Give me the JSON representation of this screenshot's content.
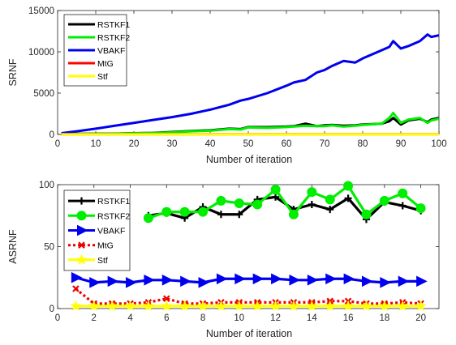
{
  "chart_data": [
    {
      "type": "line",
      "title": "",
      "xlabel": "Number of iteration",
      "ylabel": "SRNF",
      "xlim": [
        0,
        100
      ],
      "ylim": [
        0,
        15000
      ],
      "xticks": [
        0,
        10,
        20,
        30,
        40,
        50,
        60,
        70,
        80,
        90,
        100
      ],
      "yticks": [
        0,
        5000,
        10000,
        15000
      ],
      "xtick_labels": [
        "0",
        "10",
        "20",
        "30",
        "40",
        "50",
        "60",
        "70",
        "80",
        "90",
        "100"
      ],
      "ytick_labels": [
        "0",
        "5000",
        "10000",
        "15000"
      ],
      "legend_position": "top-left",
      "grid": false,
      "x": [
        1,
        5,
        10,
        15,
        20,
        25,
        30,
        35,
        40,
        45,
        48,
        50,
        55,
        60,
        62,
        65,
        68,
        70,
        72,
        75,
        78,
        80,
        85,
        87,
        88,
        90,
        92,
        95,
        97,
        98,
        100
      ],
      "series": [
        {
          "name": "RSTKF1",
          "color": "#000000",
          "marker": "none",
          "values": [
            60,
            70,
            80,
            100,
            150,
            180,
            300,
            420,
            500,
            700,
            650,
            900,
            880,
            950,
            1000,
            1300,
            1000,
            1100,
            1150,
            1050,
            1100,
            1200,
            1300,
            1600,
            2000,
            1200,
            1700,
            1900,
            1500,
            1800,
            2000
          ]
        },
        {
          "name": "RSTKF2",
          "color": "#00ee00",
          "marker": "none",
          "values": [
            50,
            60,
            70,
            90,
            130,
            160,
            250,
            380,
            450,
            650,
            600,
            850,
            800,
            900,
            950,
            1050,
            1000,
            1000,
            1100,
            950,
            1050,
            1150,
            1300,
            2000,
            2600,
            1400,
            1800,
            2000,
            1400,
            1700,
            1900
          ]
        },
        {
          "name": "VBAKF",
          "color": "#0000ee",
          "marker": "none",
          "values": [
            150,
            380,
            700,
            1050,
            1400,
            1750,
            2100,
            2500,
            3000,
            3600,
            4100,
            4300,
            5000,
            5900,
            6300,
            6600,
            7500,
            7800,
            8300,
            8900,
            8700,
            9200,
            10200,
            10600,
            11300,
            10400,
            10700,
            11300,
            12100,
            11800,
            12000
          ]
        },
        {
          "name": "MtG",
          "color": "#ff0000",
          "marker": "none",
          "values": [
            20,
            20,
            20,
            20,
            20,
            20,
            20,
            20,
            20,
            20,
            20,
            20,
            20,
            20,
            20,
            20,
            20,
            20,
            20,
            20,
            20,
            20,
            20,
            20,
            20,
            20,
            20,
            20,
            20,
            20,
            20
          ]
        },
        {
          "name": "Stf",
          "color": "#ffff00",
          "marker": "none",
          "values": [
            10,
            10,
            10,
            10,
            10,
            10,
            10,
            10,
            10,
            10,
            10,
            10,
            10,
            10,
            10,
            10,
            10,
            10,
            10,
            10,
            10,
            10,
            10,
            10,
            10,
            10,
            10,
            10,
            10,
            10,
            10
          ]
        }
      ]
    },
    {
      "type": "line",
      "title": "",
      "xlabel": "Number of iteration",
      "ylabel": "ASRNF",
      "xlim": [
        0,
        21
      ],
      "ylim": [
        0,
        100
      ],
      "xticks": [
        0,
        2,
        4,
        6,
        8,
        10,
        12,
        14,
        16,
        18,
        20
      ],
      "yticks": [
        0,
        50,
        100
      ],
      "xtick_labels": [
        "0",
        "2",
        "4",
        "6",
        "8",
        "10",
        "12",
        "14",
        "16",
        "18",
        "20"
      ],
      "ytick_labels": [
        "0",
        "50",
        "100"
      ],
      "legend_position": "top-left",
      "grid": false,
      "series": [
        {
          "name": "RSTKF1",
          "color": "#000000",
          "marker": "plus",
          "x": [
            5,
            6,
            7,
            8,
            9,
            10,
            11,
            12,
            13,
            14,
            15,
            16,
            17,
            18,
            19,
            20
          ],
          "values": [
            75,
            77,
            73,
            82,
            76,
            76,
            88,
            90,
            80,
            84,
            80,
            89,
            72,
            86,
            83,
            79
          ]
        },
        {
          "name": "RSTKF2",
          "color": "#00ee00",
          "marker": "circle",
          "x": [
            5,
            6,
            7,
            8,
            9,
            10,
            11,
            12,
            13,
            14,
            15,
            16,
            17,
            18,
            19,
            20
          ],
          "values": [
            73,
            78,
            78,
            78,
            87,
            85,
            84,
            96,
            76,
            94,
            88,
            99,
            76,
            87,
            93,
            81
          ]
        },
        {
          "name": "VBAKF",
          "color": "#0000ee",
          "marker": "triangle-right",
          "x": [
            1,
            2,
            3,
            4,
            5,
            6,
            7,
            8,
            9,
            10,
            11,
            12,
            13,
            14,
            15,
            16,
            17,
            18,
            19,
            20
          ],
          "values": [
            25,
            21,
            22,
            21,
            23,
            23,
            22,
            21,
            24,
            24,
            24,
            24,
            23,
            23,
            24,
            24,
            22,
            21,
            22,
            22
          ]
        },
        {
          "name": "MtG",
          "color": "#ee0000",
          "marker": "x",
          "dashed": true,
          "x": [
            1,
            2,
            3,
            4,
            5,
            6,
            7,
            8,
            9,
            10,
            11,
            12,
            13,
            14,
            15,
            16,
            17,
            18,
            19,
            20
          ],
          "values": [
            16,
            4,
            4,
            4,
            5,
            8,
            4,
            4,
            5,
            5,
            5,
            5,
            5,
            5,
            6,
            6,
            4,
            4,
            5,
            4
          ]
        },
        {
          "name": "Stf",
          "color": "#ffff00",
          "marker": "star",
          "x": [
            1,
            2,
            3,
            4,
            5,
            6,
            7,
            8,
            9,
            10,
            11,
            12,
            13,
            14,
            15,
            16,
            17,
            18,
            19,
            20
          ],
          "values": [
            2,
            2,
            2,
            2,
            2,
            2,
            2,
            2,
            2,
            2,
            2,
            2,
            2,
            2,
            2,
            2,
            2,
            2,
            2,
            2
          ]
        }
      ]
    }
  ]
}
